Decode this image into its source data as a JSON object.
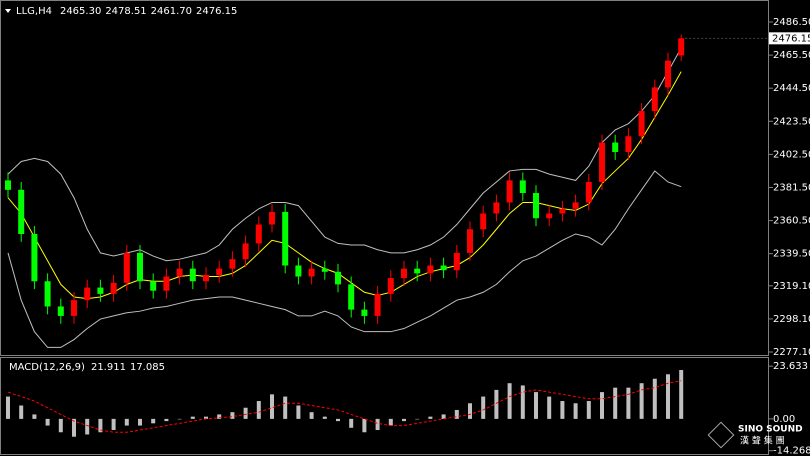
{
  "chart_data": [
    {
      "type": "candlestick",
      "title": "LLG,H4",
      "header_labels": [
        "2465.30",
        "2478.51",
        "2461.70",
        "2476.15"
      ],
      "up_color": "#ff0000",
      "down_color": "#00ff00",
      "open": [
        2386,
        2380,
        2352,
        2322,
        2306,
        2300,
        2310,
        2318,
        2314,
        2321,
        2340,
        2322,
        2316,
        2325,
        2330,
        2322,
        2326,
        2330,
        2336,
        2346,
        2358,
        2366,
        2332,
        2325,
        2330,
        2328,
        2320,
        2304,
        2300,
        2314,
        2324,
        2330,
        2327,
        2332,
        2329,
        2340,
        2355,
        2365,
        2372,
        2386,
        2378,
        2362,
        2365,
        2368,
        2372,
        2385,
        2410,
        2404,
        2414,
        2430,
        2445,
        2465.3
      ],
      "high": [
        2391,
        2385,
        2357,
        2327,
        2311,
        2315,
        2323,
        2323,
        2326,
        2345,
        2345,
        2327,
        2330,
        2335,
        2335,
        2331,
        2335,
        2341,
        2351,
        2363,
        2371,
        2371,
        2337,
        2335,
        2335,
        2333,
        2325,
        2309,
        2319,
        2329,
        2335,
        2335,
        2337,
        2337,
        2345,
        2360,
        2370,
        2377,
        2391,
        2391,
        2383,
        2370,
        2373,
        2377,
        2390,
        2415,
        2415,
        2419,
        2435,
        2450,
        2467,
        2478.51
      ],
      "low": [
        2375,
        2347,
        2317,
        2301,
        2295,
        2295,
        2305,
        2309,
        2309,
        2316,
        2317,
        2311,
        2311,
        2320,
        2317,
        2317,
        2321,
        2325,
        2331,
        2341,
        2353,
        2327,
        2320,
        2320,
        2323,
        2315,
        2299,
        2295,
        2295,
        2309,
        2319,
        2322,
        2322,
        2324,
        2324,
        2335,
        2350,
        2360,
        2367,
        2373,
        2357,
        2357,
        2360,
        2363,
        2367,
        2380,
        2399,
        2399,
        2409,
        2425,
        2440,
        2461.7
      ],
      "close": [
        2380,
        2352,
        2322,
        2306,
        2300,
        2310,
        2318,
        2314,
        2321,
        2340,
        2322,
        2316,
        2325,
        2330,
        2322,
        2326,
        2330,
        2336,
        2346,
        2358,
        2366,
        2332,
        2325,
        2330,
        2328,
        2320,
        2304,
        2300,
        2314,
        2324,
        2330,
        2327,
        2332,
        2329,
        2340,
        2355,
        2365,
        2372,
        2386,
        2378,
        2362,
        2365,
        2368,
        2372,
        2385,
        2410,
        2404,
        2414,
        2430,
        2445,
        2462,
        2476.15
      ],
      "lines": [
        {
          "color": "#ffff00",
          "values": [
            2375,
            2365,
            2350,
            2335,
            2320,
            2312,
            2311,
            2312,
            2315,
            2320,
            2323,
            2322,
            2322,
            2325,
            2326,
            2325,
            2325,
            2327,
            2332,
            2340,
            2348,
            2346,
            2340,
            2334,
            2330,
            2327,
            2321,
            2315,
            2313,
            2315,
            2320,
            2325,
            2328,
            2330,
            2332,
            2337,
            2345,
            2355,
            2365,
            2372,
            2372,
            2370,
            2368,
            2367,
            2371,
            2384,
            2392,
            2400,
            2412,
            2426,
            2440,
            2455
          ]
        },
        {
          "color": "#c0c0c0",
          "values": [
            2390,
            2398,
            2400,
            2398,
            2390,
            2375,
            2355,
            2340,
            2338,
            2340,
            2342,
            2338,
            2335,
            2336,
            2338,
            2340,
            2345,
            2355,
            2362,
            2368,
            2372,
            2372,
            2370,
            2360,
            2350,
            2346,
            2345,
            2345,
            2342,
            2340,
            2340,
            2342,
            2345,
            2350,
            2358,
            2368,
            2378,
            2385,
            2392,
            2393,
            2393,
            2390,
            2388,
            2386,
            2395,
            2410,
            2418,
            2422,
            2430,
            2440,
            2455,
            2470
          ]
        },
        {
          "color": "#c0c0c0",
          "values": [
            2340,
            2310,
            2290,
            2280,
            2280,
            2285,
            2292,
            2298,
            2300,
            2302,
            2303,
            2305,
            2306,
            2308,
            2310,
            2311,
            2312,
            2312,
            2310,
            2308,
            2306,
            2304,
            2300,
            2300,
            2303,
            2300,
            2293,
            2290,
            2290,
            2290,
            2292,
            2296,
            2300,
            2305,
            2310,
            2312,
            2315,
            2320,
            2328,
            2335,
            2338,
            2343,
            2348,
            2352,
            2350,
            2345,
            2355,
            2368,
            2380,
            2392,
            2385,
            2382
          ]
        }
      ],
      "ylim": [
        2275.2,
        2499.2
      ],
      "yticks": [
        {
          "value": 2486.5,
          "label": "2486.50"
        },
        {
          "value": 2465.5,
          "label": "2465.50"
        },
        {
          "value": 2444.5,
          "label": "2444.50"
        },
        {
          "value": 2423.5,
          "label": "2423.50"
        },
        {
          "value": 2402.5,
          "label": "2402.50"
        },
        {
          "value": 2381.5,
          "label": "2381.50"
        },
        {
          "value": 2360.5,
          "label": "2360.50"
        },
        {
          "value": 2339.5,
          "label": "2339.50"
        },
        {
          "value": 2319.1,
          "label": "2319.10"
        },
        {
          "value": 2298.1,
          "label": "2298.10"
        },
        {
          "value": 2277.1,
          "label": "2277.10"
        }
      ]
    },
    {
      "type": "macd",
      "title": "MACD(12,26,9)",
      "histogram_color": "#c0c0c0",
      "signal_color": "#ff0000",
      "histogram": [
        10,
        6,
        2,
        -3,
        -6,
        -8,
        -7,
        -6,
        -5,
        -3,
        -3,
        -2,
        -1,
        0,
        1,
        1,
        2,
        3,
        5,
        8,
        11,
        10,
        6,
        3,
        1,
        -1,
        -4,
        -6,
        -5,
        -3,
        -1,
        0,
        1,
        2,
        4,
        7,
        10,
        13,
        16,
        15,
        12,
        10,
        8,
        7,
        8,
        12,
        14,
        14,
        16,
        18,
        20,
        21.911
      ],
      "signal": [
        12,
        10,
        8,
        5,
        2,
        -1,
        -3,
        -5,
        -6,
        -6,
        -5,
        -4,
        -3,
        -2,
        -1,
        0,
        0.5,
        1,
        2,
        3,
        5,
        7,
        7,
        6,
        5,
        4,
        2,
        0,
        -2,
        -3,
        -3,
        -2,
        -1,
        0,
        1,
        2,
        4,
        7,
        10,
        12,
        13,
        12,
        11,
        10,
        9,
        9,
        10,
        11,
        13,
        14,
        16,
        17.085
      ],
      "ylim": [
        -16.2,
        27.3
      ],
      "yticks": [
        23.633,
        {
          "value": 0,
          "label": "0.00"
        },
        -14.268
      ]
    }
  ],
  "watermark": {
    "name": "SINO SOUND",
    "subtitle": "漢 聲 集 團"
  }
}
